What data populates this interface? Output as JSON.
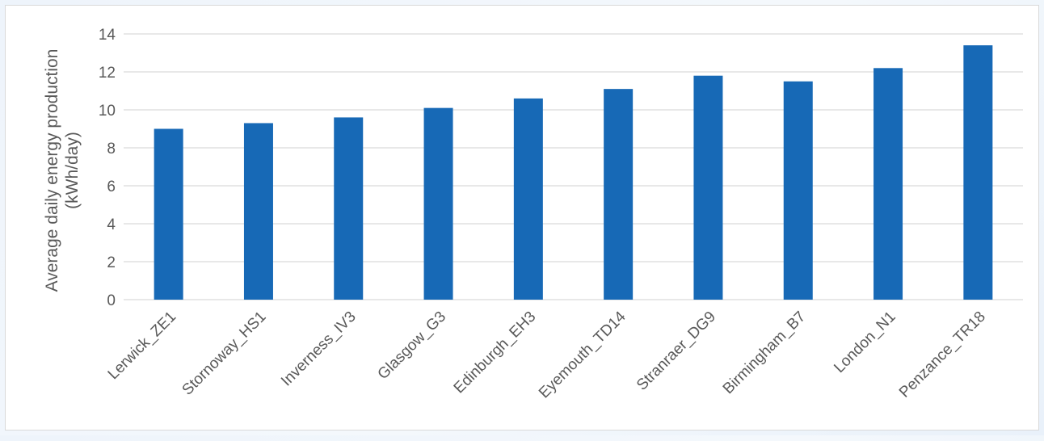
{
  "chart_data": {
    "type": "bar",
    "title": "",
    "xlabel": "",
    "ylabel_line1": "Average daily energy production",
    "ylabel_line2": "(kWh/day)",
    "categories": [
      "Lerwick_ZE1",
      "Stornoway_HS1",
      "Inverness_IV3",
      "Glasgow_G3",
      "Edinburgh_EH3",
      "Eyemouth_TD14",
      "Stranraer_DG9",
      "Birmingham_B7",
      "London_N1",
      "Penzance_TR18"
    ],
    "values": [
      9.0,
      9.3,
      9.6,
      10.1,
      10.6,
      11.1,
      11.8,
      11.5,
      12.2,
      13.4
    ],
    "ylim": [
      0,
      14
    ],
    "yticks": [
      0,
      2,
      4,
      6,
      8,
      10,
      12,
      14
    ],
    "grid": true,
    "legend": "none",
    "bar_color": "#1769b6",
    "grid_color": "#d9d9d9"
  }
}
